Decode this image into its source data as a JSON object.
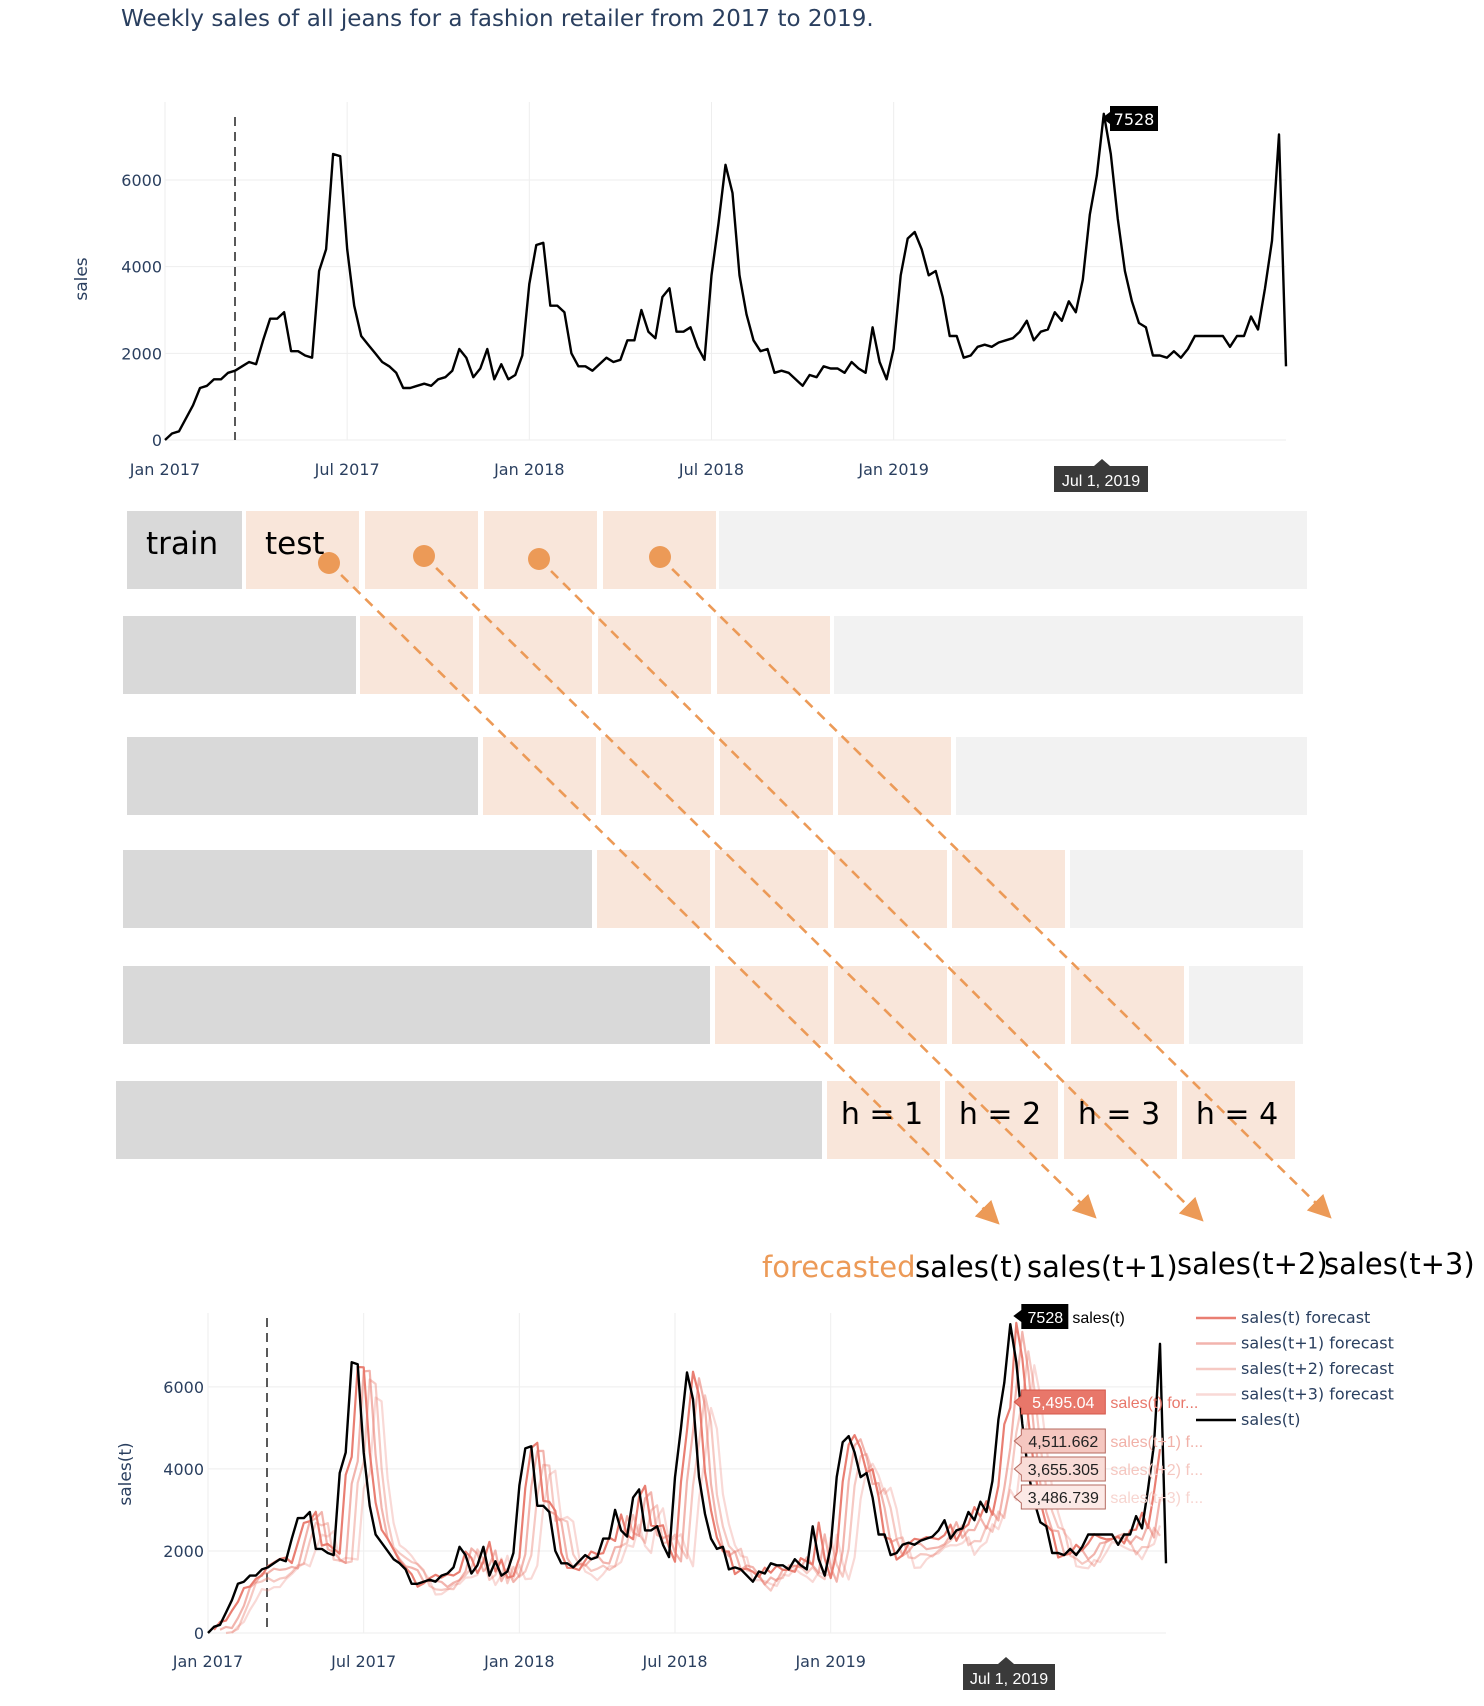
{
  "title": "Weekly sales of all jeans for a fashion retailer from 2017 to 2019.",
  "colors": {
    "train": "#d9d9d9",
    "test": "#f9e6da",
    "unused": "#f2f2f2",
    "arrow": "#ec9a57",
    "forecast": "#e8776a",
    "actual": "#000000",
    "axis_text": "#2a3f5f",
    "grid": "#eeeeee"
  },
  "top_chart": {
    "ylabel": "sales",
    "yticks": [
      "0",
      "2000",
      "4000",
      "6000"
    ],
    "xticks": [
      "Jan 2017",
      "Jul 2017",
      "Jan 2018",
      "Jul 2018",
      "Jan 2019"
    ],
    "peak_label": "7528",
    "date_label": "Jul 1, 2019"
  },
  "cv_diagram": {
    "train_label": "train",
    "test_label": "test",
    "horizon_labels": [
      "h = 1",
      "h = 2",
      "h = 3",
      "h = 4"
    ],
    "forecasted_word": "forecasted",
    "output_labels": [
      "sales(t)",
      "sales(t+1)",
      "sales(t+2)",
      "sales(t+3)"
    ]
  },
  "bottom_chart": {
    "ylabel": "sales(t)",
    "yticks": [
      "0",
      "2000",
      "4000",
      "6000"
    ],
    "xticks": [
      "Jan 2017",
      "Jul 2017",
      "Jan 2018",
      "Jul 2018",
      "Jan 2019"
    ],
    "date_label": "Jul 1, 2019",
    "legend": [
      "sales(t) forecast",
      "sales(t+1) forecast",
      "sales(t+2) forecast",
      "sales(t+3) forecast",
      "sales(t)"
    ],
    "hover": [
      {
        "value": "7528",
        "name": "sales(t)"
      },
      {
        "value": "5,495.04",
        "name": "sales(t) for..."
      },
      {
        "value": "4,511.662",
        "name": "sales(t+1) f..."
      },
      {
        "value": "3,655.305",
        "name": "sales(t+2) f..."
      },
      {
        "value": "3,486.739",
        "name": "sales(t+3) f..."
      }
    ]
  },
  "chart_data": [
    {
      "type": "line",
      "title": "Weekly sales of all jeans for a fashion retailer from 2017 to 2019.",
      "xlabel": "",
      "ylabel": "sales",
      "ylim": [
        0,
        7800
      ],
      "x_start": "Jan 2017",
      "x_frequency": "weekly",
      "series": [
        {
          "name": "sales",
          "values": [
            0,
            150,
            200,
            500,
            800,
            1200,
            1250,
            1400,
            1400,
            1550,
            1600,
            1700,
            1800,
            1750,
            2300,
            2800,
            2800,
            2950,
            2050,
            2050,
            1950,
            1900,
            3900,
            4400,
            6600,
            6550,
            4400,
            3100,
            2400,
            2200,
            2000,
            1800,
            1700,
            1550,
            1200,
            1200,
            1250,
            1300,
            1250,
            1400,
            1450,
            1600,
            2100,
            1900,
            1450,
            1650,
            2100,
            1400,
            1750,
            1400,
            1500,
            1950,
            3600,
            4500,
            4550,
            3100,
            3100,
            2950,
            2000,
            1700,
            1700,
            1600,
            1750,
            1900,
            1800,
            1850,
            2300,
            2300,
            3000,
            2500,
            2350,
            3300,
            3500,
            2500,
            2500,
            2600,
            2150,
            1850,
            3800,
            5000,
            6350,
            5700,
            3800,
            2900,
            2300,
            2050,
            2100,
            1550,
            1600,
            1550,
            1400,
            1250,
            1500,
            1450,
            1700,
            1650,
            1650,
            1550,
            1800,
            1650,
            1550,
            2600,
            1800,
            1400,
            2100,
            3800,
            4650,
            4800,
            4400,
            3800,
            3900,
            3300,
            2400,
            2400,
            1900,
            1950,
            2150,
            2200,
            2150,
            2250,
            2300,
            2350,
            2500,
            2750,
            2300,
            2500,
            2550,
            2950,
            2750,
            3200,
            2950,
            3700,
            5200,
            6100,
            7528,
            6600,
            5100,
            3900,
            3200,
            2700,
            2600,
            1950,
            1950,
            1900,
            2050,
            1900,
            2100,
            2400,
            2400,
            2400,
            2400,
            2400,
            2150,
            2400,
            2400,
            2850,
            2550,
            3500,
            4600,
            7050,
            1700
          ]
        }
      ]
    },
    {
      "type": "line",
      "title": "",
      "xlabel": "",
      "ylabel": "sales(t)",
      "ylim": [
        0,
        7800
      ],
      "series": [
        {
          "name": "sales(t) forecast",
          "shift_weeks": 1,
          "at_jul_1_2019": 5495.04
        },
        {
          "name": "sales(t+1) forecast",
          "shift_weeks": 2,
          "at_jul_1_2019": 4511.662
        },
        {
          "name": "sales(t+2) forecast",
          "shift_weeks": 3,
          "at_jul_1_2019": 3655.305
        },
        {
          "name": "sales(t+3) forecast",
          "shift_weeks": 4,
          "at_jul_1_2019": 3486.739
        },
        {
          "name": "sales(t)",
          "same_as": "sales",
          "at_jul_1_2019": 7528
        }
      ]
    }
  ]
}
